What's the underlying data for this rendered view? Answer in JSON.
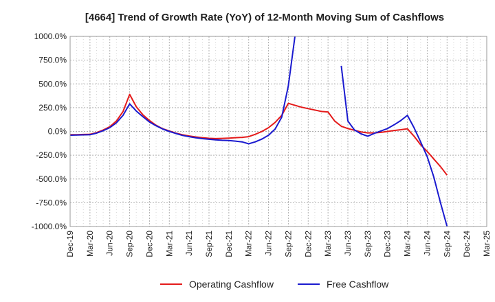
{
  "chart_data": {
    "type": "line",
    "title": "[4664]  Trend of Growth Rate (YoY) of 12-Month Moving Sum of Cashflows",
    "xlabel": "",
    "ylabel": "",
    "ylim": [
      -1000,
      1000
    ],
    "y_ticks": [
      {
        "value": 1000,
        "label": "1000.0%"
      },
      {
        "value": 750,
        "label": "750.0%"
      },
      {
        "value": 500,
        "label": "500.0%"
      },
      {
        "value": 250,
        "label": "250.0%"
      },
      {
        "value": 0,
        "label": "0.0%"
      },
      {
        "value": -250,
        "label": "-250.0%"
      },
      {
        "value": -500,
        "label": "-500.0%"
      },
      {
        "value": -750,
        "label": "-750.0%"
      },
      {
        "value": -1000,
        "label": "-1000.0%"
      }
    ],
    "x_ticks": [
      "Dec-19",
      "Mar-20",
      "Jun-20",
      "Sep-20",
      "Dec-20",
      "Mar-21",
      "Jun-21",
      "Sep-21",
      "Dec-21",
      "Mar-22",
      "Jun-22",
      "Sep-22",
      "Dec-22",
      "Mar-23",
      "Jun-23",
      "Sep-23",
      "Dec-23",
      "Mar-24",
      "Jun-24",
      "Sep-24",
      "Dec-24",
      "Mar-25"
    ],
    "x_range": [
      "2019-12",
      "2025-03"
    ],
    "grid": true,
    "legend_position": "bottom",
    "series": [
      {
        "name": "Operating Cashflow",
        "color": "#e41a1a",
        "points": [
          [
            "2019-12",
            -35
          ],
          [
            "2020-01",
            -34
          ],
          [
            "2020-02",
            -32
          ],
          [
            "2020-03",
            -30
          ],
          [
            "2020-04",
            -12
          ],
          [
            "2020-05",
            15
          ],
          [
            "2020-06",
            50
          ],
          [
            "2020-07",
            110
          ],
          [
            "2020-08",
            210
          ],
          [
            "2020-09",
            390
          ],
          [
            "2020-10",
            260
          ],
          [
            "2020-11",
            175
          ],
          [
            "2020-12",
            115
          ],
          [
            "2021-01",
            65
          ],
          [
            "2021-02",
            28
          ],
          [
            "2021-03",
            5
          ],
          [
            "2021-04",
            -18
          ],
          [
            "2021-05",
            -35
          ],
          [
            "2021-06",
            -48
          ],
          [
            "2021-07",
            -58
          ],
          [
            "2021-08",
            -66
          ],
          [
            "2021-09",
            -72
          ],
          [
            "2021-10",
            -75
          ],
          [
            "2021-11",
            -73
          ],
          [
            "2021-12",
            -70
          ],
          [
            "2022-01",
            -66
          ],
          [
            "2022-02",
            -62
          ],
          [
            "2022-03",
            -55
          ],
          [
            "2022-04",
            -30
          ],
          [
            "2022-05",
            0
          ],
          [
            "2022-06",
            40
          ],
          [
            "2022-07",
            95
          ],
          [
            "2022-08",
            170
          ],
          [
            "2022-09",
            295
          ],
          [
            "2022-10",
            275
          ],
          [
            "2022-11",
            255
          ],
          [
            "2022-12",
            240
          ],
          [
            "2023-01",
            225
          ],
          [
            "2023-02",
            210
          ],
          [
            "2023-03",
            205
          ],
          [
            "2023-04",
            110
          ],
          [
            "2023-05",
            55
          ],
          [
            "2023-06",
            30
          ],
          [
            "2023-07",
            12
          ],
          [
            "2023-08",
            -5
          ],
          [
            "2023-09",
            -15
          ],
          [
            "2023-10",
            -15
          ],
          [
            "2023-11",
            -10
          ],
          [
            "2023-12",
            0
          ],
          [
            "2024-01",
            10
          ],
          [
            "2024-02",
            18
          ],
          [
            "2024-03",
            28
          ],
          [
            "2024-04",
            -50
          ],
          [
            "2024-05",
            -140
          ],
          [
            "2024-06",
            -210
          ],
          [
            "2024-07",
            -290
          ],
          [
            "2024-08",
            -370
          ],
          [
            "2024-09",
            -460
          ]
        ]
      },
      {
        "name": "Free Cashflow",
        "color": "#1a1acf",
        "segments": [
          [
            [
              "2019-12",
              -40
            ],
            [
              "2020-01",
              -38
            ],
            [
              "2020-02",
              -36
            ],
            [
              "2020-03",
              -35
            ],
            [
              "2020-04",
              -18
            ],
            [
              "2020-05",
              8
            ],
            [
              "2020-06",
              40
            ],
            [
              "2020-07",
              90
            ],
            [
              "2020-08",
              170
            ],
            [
              "2020-09",
              290
            ],
            [
              "2020-10",
              215
            ],
            [
              "2020-11",
              155
            ],
            [
              "2020-12",
              100
            ],
            [
              "2021-01",
              60
            ],
            [
              "2021-02",
              25
            ],
            [
              "2021-03",
              0
            ],
            [
              "2021-04",
              -22
            ],
            [
              "2021-05",
              -42
            ],
            [
              "2021-06",
              -55
            ],
            [
              "2021-07",
              -67
            ],
            [
              "2021-08",
              -76
            ],
            [
              "2021-09",
              -82
            ],
            [
              "2021-10",
              -88
            ],
            [
              "2021-11",
              -93
            ],
            [
              "2021-12",
              -96
            ],
            [
              "2022-01",
              -102
            ],
            [
              "2022-02",
              -110
            ],
            [
              "2022-03",
              -130
            ],
            [
              "2022-04",
              -110
            ],
            [
              "2022-05",
              -80
            ],
            [
              "2022-06",
              -40
            ],
            [
              "2022-07",
              25
            ],
            [
              "2022-08",
              150
            ],
            [
              "2022-09",
              480
            ],
            [
              "2022-10",
              1000
            ]
          ],
          [
            [
              "2023-05",
              690
            ],
            [
              "2023-06",
              110
            ],
            [
              "2023-07",
              15
            ],
            [
              "2023-08",
              -25
            ],
            [
              "2023-09",
              -50
            ],
            [
              "2023-10",
              -20
            ],
            [
              "2023-11",
              5
            ],
            [
              "2023-12",
              30
            ],
            [
              "2024-01",
              70
            ],
            [
              "2024-02",
              115
            ],
            [
              "2024-03",
              170
            ],
            [
              "2024-04",
              40
            ],
            [
              "2024-05",
              -110
            ],
            [
              "2024-06",
              -265
            ],
            [
              "2024-07",
              -480
            ],
            [
              "2024-08",
              -750
            ],
            [
              "2024-09",
              -1000
            ]
          ]
        ]
      }
    ]
  }
}
